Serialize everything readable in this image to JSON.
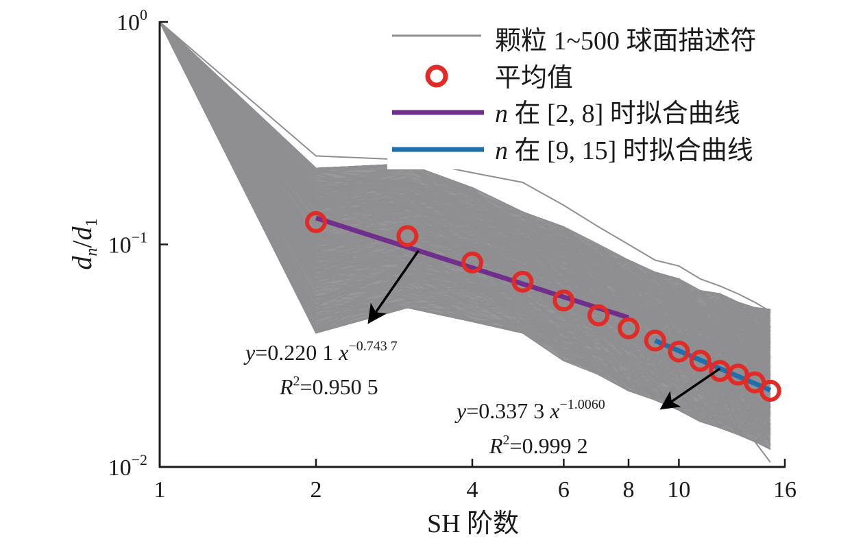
{
  "chart_data": {
    "type": "line",
    "xscale": "log",
    "yscale": "log",
    "xlabel": "SH 阶数",
    "ylabel": {
      "d": "d",
      "sub_n": "n",
      "slash": "/",
      "d1": "d",
      "sub_1": "1"
    },
    "xlim": [
      1,
      16
    ],
    "ylim": [
      0.01,
      1
    ],
    "xticks": [
      {
        "value": 1,
        "label": "1"
      },
      {
        "value": 2,
        "label": "2"
      },
      {
        "value": 4,
        "label": "4"
      },
      {
        "value": 6,
        "label": "6"
      },
      {
        "value": 8,
        "label": "8"
      },
      {
        "value": 10,
        "label": "10"
      },
      {
        "value": 16,
        "label": "16"
      }
    ],
    "yticks": [
      {
        "value": 1,
        "base": "10",
        "exp": "0"
      },
      {
        "value": 0.1,
        "base": "10",
        "exp": "−1"
      },
      {
        "value": 0.01,
        "base": "10",
        "exp": "−2"
      }
    ],
    "grid": false,
    "legend_position": "top-right",
    "legend": [
      {
        "label": "颗粒 1~500 球面描述符",
        "kind": "line",
        "color": "#8f8f92"
      },
      {
        "label": "平均值",
        "kind": "circle",
        "color": "#e02b26"
      },
      {
        "label_n": "n",
        "label_rest": " 在 [2, 8] 时拟合曲线",
        "kind": "line",
        "color": "#6f2f8a"
      },
      {
        "label_n": "n",
        "label_rest": " 在 [9, 15] 时拟合曲线",
        "kind": "line",
        "color": "#1f6fac"
      }
    ],
    "particles": {
      "name": "颗粒 1~500 球面描述符",
      "count": 500,
      "color": "#8f8f92",
      "n": [
        1,
        2,
        3,
        4,
        5,
        6,
        7,
        8,
        9,
        10,
        11,
        12,
        13,
        14,
        15
      ],
      "upper_envelope": [
        1,
        0.22,
        0.23,
        0.18,
        0.14,
        0.12,
        0.1,
        0.085,
        0.075,
        0.07,
        0.062,
        0.06,
        0.055,
        0.052,
        0.051
      ],
      "lower_envelope": [
        1,
        0.04,
        0.052,
        0.045,
        0.04,
        0.03,
        0.026,
        0.022,
        0.02,
        0.018,
        0.016,
        0.015,
        0.014,
        0.013,
        0.012
      ],
      "outlier_high": [
        1,
        0.25,
        0.24,
        0.21,
        0.19,
        0.15,
        0.12,
        0.1,
        0.085,
        0.08,
        0.07,
        0.065,
        0.06,
        0.055,
        0.05
      ],
      "outlier_low": [
        1,
        0.05,
        0.06,
        0.048,
        0.042,
        0.033,
        0.028,
        0.024,
        0.021,
        0.018,
        0.017,
        0.015,
        0.014,
        0.013,
        0.0105
      ]
    },
    "mean": {
      "name": "平均值",
      "color": "#e02b26",
      "n": [
        2,
        3,
        4,
        5,
        6,
        7,
        8,
        9,
        10,
        11,
        12,
        13,
        14,
        15
      ],
      "values": [
        0.126,
        0.109,
        0.083,
        0.068,
        0.056,
        0.048,
        0.042,
        0.037,
        0.033,
        0.03,
        0.027,
        0.026,
        0.024,
        0.022
      ]
    },
    "fits": [
      {
        "name": "n 在 [2, 8] 时拟合曲线",
        "color": "#6f2f8a",
        "range": [
          2,
          8
        ],
        "a": 0.2201,
        "b": -0.7437,
        "equation": {
          "y": "y",
          "eq": "=0.220 1 ",
          "x": "x",
          "exp": "−0.743 7"
        },
        "r2": {
          "R": "R",
          "sup": "2",
          "val": "=0.950 5"
        },
        "arrow_from_n": 3.15,
        "arrow_label_side": "lower-left"
      },
      {
        "name": "n 在 [9, 15] 时拟合曲线",
        "color": "#1f6fac",
        "range": [
          9,
          15
        ],
        "a": 0.3373,
        "b": -1.006,
        "equation": {
          "y": "y",
          "eq": "=0.337 3 ",
          "x": "x",
          "exp": "−1.0060"
        },
        "r2": {
          "R": "R",
          "sup": "2",
          "val": "=0.999 2"
        },
        "arrow_from_n": 12.0,
        "arrow_label_side": "lower-left"
      }
    ]
  }
}
